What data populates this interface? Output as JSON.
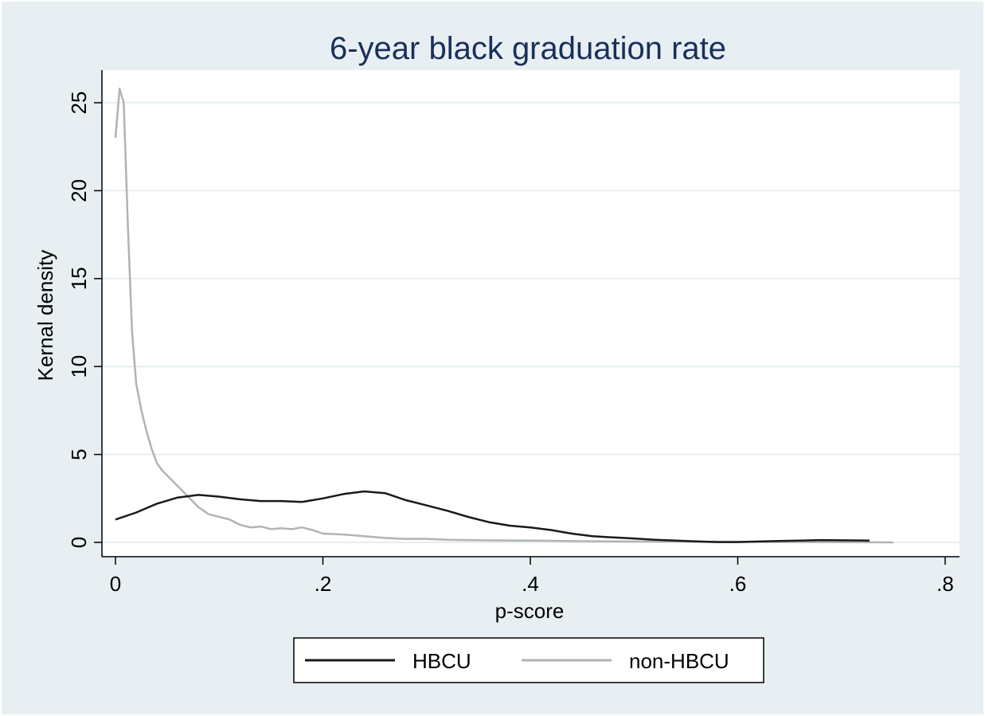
{
  "chart_data": {
    "type": "line",
    "title": "6-year black graduation rate",
    "xlabel": "p-score",
    "ylabel": "Kernal density",
    "xlim": [
      0,
      0.8
    ],
    "ylim": [
      0,
      25
    ],
    "xticks": [
      0,
      0.2,
      0.4,
      0.6,
      0.8
    ],
    "xtick_labels": [
      "0",
      ".2",
      ".4",
      ".6",
      ".8"
    ],
    "yticks": [
      0,
      5,
      10,
      15,
      20,
      25
    ],
    "ytick_labels": [
      "0",
      "5",
      "10",
      "15",
      "20",
      "25"
    ],
    "grid": "horizontal",
    "legend_position": "bottom",
    "colors": {
      "background": "#e8eff3",
      "plot_area": "#ffffff",
      "title": "#1a2f5a"
    },
    "series": [
      {
        "name": "HBCU",
        "color": "#1a1a1a",
        "x": [
          0,
          0.02,
          0.04,
          0.06,
          0.08,
          0.1,
          0.12,
          0.14,
          0.16,
          0.18,
          0.2,
          0.22,
          0.24,
          0.26,
          0.28,
          0.3,
          0.32,
          0.34,
          0.36,
          0.38,
          0.4,
          0.42,
          0.44,
          0.46,
          0.48,
          0.5,
          0.52,
          0.54,
          0.56,
          0.58,
          0.6,
          0.62,
          0.64,
          0.66,
          0.68,
          0.7,
          0.727
        ],
        "y": [
          1.3,
          1.7,
          2.2,
          2.55,
          2.7,
          2.6,
          2.45,
          2.35,
          2.35,
          2.3,
          2.5,
          2.75,
          2.9,
          2.8,
          2.4,
          2.1,
          1.8,
          1.45,
          1.15,
          0.95,
          0.85,
          0.7,
          0.5,
          0.35,
          0.28,
          0.22,
          0.15,
          0.1,
          0.06,
          0.02,
          0.02,
          0.05,
          0.08,
          0.1,
          0.13,
          0.12,
          0.1
        ]
      },
      {
        "name": "non-HBCU",
        "color": "#b3b3b3",
        "x": [
          0,
          0.004,
          0.008,
          0.012,
          0.016,
          0.02,
          0.025,
          0.03,
          0.035,
          0.04,
          0.045,
          0.05,
          0.06,
          0.07,
          0.08,
          0.09,
          0.1,
          0.11,
          0.12,
          0.13,
          0.14,
          0.15,
          0.16,
          0.17,
          0.18,
          0.19,
          0.2,
          0.22,
          0.24,
          0.26,
          0.28,
          0.3,
          0.32,
          0.35,
          0.4,
          0.45,
          0.5,
          0.55,
          0.6,
          0.65,
          0.7,
          0.75
        ],
        "y": [
          23.0,
          25.8,
          25.0,
          18.0,
          12.0,
          9.0,
          7.5,
          6.3,
          5.3,
          4.5,
          4.1,
          3.8,
          3.2,
          2.6,
          2.0,
          1.6,
          1.45,
          1.3,
          1.0,
          0.85,
          0.9,
          0.75,
          0.8,
          0.75,
          0.85,
          0.7,
          0.5,
          0.45,
          0.35,
          0.25,
          0.2,
          0.2,
          0.15,
          0.12,
          0.1,
          0.07,
          0.05,
          0.04,
          0.03,
          0.02,
          0.01,
          0.0
        ]
      }
    ]
  }
}
